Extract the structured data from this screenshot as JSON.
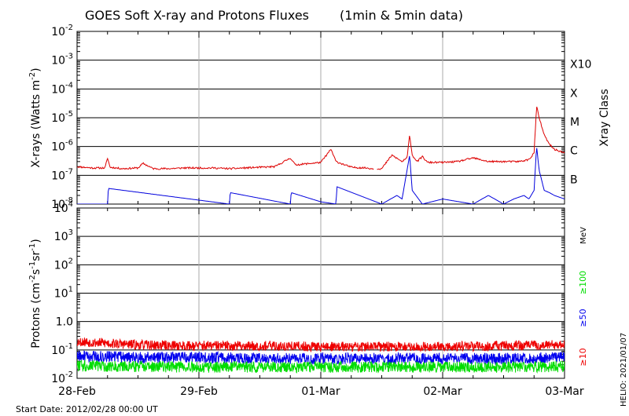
{
  "chart_data": [
    {
      "type": "line",
      "title": "GOES Soft X-ray and Protons Fluxes",
      "subtitle": "(1min & 5min data)",
      "ylabel": "X-rays (Watts m",
      "ylabel_exponent": "-2",
      "ylabel_close": ")",
      "y_scale": "log",
      "ylim": [
        1e-08,
        0.01
      ],
      "y_ticks": [
        {
          "base": "10",
          "exp": "-8"
        },
        {
          "base": "10",
          "exp": "-7"
        },
        {
          "base": "10",
          "exp": "-6"
        },
        {
          "base": "10",
          "exp": "-5"
        },
        {
          "base": "10",
          "exp": "-4"
        },
        {
          "base": "10",
          "exp": "-3"
        },
        {
          "base": "10",
          "exp": "-2"
        }
      ],
      "right_axis_label": "Xray Class",
      "class_labels": [
        "B",
        "C",
        "M",
        "X",
        "X10"
      ],
      "grid": true,
      "series": [
        {
          "color": "#dd0000",
          "x": [
            "02-28 00:00",
            "02-28 03:00",
            "02-28 05:30",
            "02-28 06:00",
            "02-28 06:30",
            "02-28 09:00",
            "02-28 12:00",
            "02-28 13:00",
            "02-28 15:00",
            "02-28 18:00",
            "02-28 21:00",
            "02-29 00:00",
            "02-29 03:00",
            "02-29 06:00",
            "02-29 09:00",
            "02-29 12:00",
            "02-29 15:00",
            "02-29 18:00",
            "02-29 19:00",
            "02-29 21:00",
            "03-01 00:00",
            "03-01 02:00",
            "03-01 03:00",
            "03-01 06:00",
            "03-01 09:00",
            "03-01 10:00",
            "03-01 12:00",
            "03-01 14:00",
            "03-01 16:00",
            "03-01 17:00",
            "03-01 17:30",
            "03-01 18:00",
            "03-01 19:00",
            "03-01 20:00",
            "03-01 21:00",
            "03-02 00:00",
            "03-02 03:00",
            "03-02 06:00",
            "03-02 09:00",
            "03-02 12:00",
            "03-02 15:00",
            "03-02 17:00",
            "03-02 18:00",
            "03-02 18:30",
            "03-02 19:00",
            "03-02 20:00",
            "03-02 21:00",
            "03-02 22:00",
            "03-03 00:00"
          ],
          "y": [
            2e-07,
            1.8e-07,
            1.8e-07,
            4e-07,
            1.9e-07,
            1.7e-07,
            1.8e-07,
            2.6e-07,
            1.7e-07,
            1.7e-07,
            1.8e-07,
            1.8e-07,
            1.8e-07,
            1.7e-07,
            1.8e-07,
            1.9e-07,
            2e-07,
            4e-07,
            2.3e-07,
            2.5e-07,
            2.8e-07,
            8e-07,
            3e-07,
            1.9e-07,
            1.8e-07,
            1.7e-07,
            1.7e-07,
            5e-07,
            3e-07,
            4e-07,
            2.6e-06,
            5e-07,
            3e-07,
            4.5e-07,
            2.8e-07,
            2.8e-07,
            3e-07,
            4e-07,
            3e-07,
            3e-07,
            3e-07,
            3.5e-07,
            6e-07,
            2.5e-05,
            1e-05,
            2.5e-06,
            1.2e-06,
            8e-07,
            6e-07
          ]
        },
        {
          "color": "#0000dd",
          "x": [
            "02-28 00:00",
            "02-28 06:00",
            "02-28 06:10",
            "02-29 06:00",
            "02-29 06:10",
            "02-29 18:00",
            "02-29 18:10",
            "03-01 00:00",
            "03-01 03:00",
            "03-01 03:10",
            "03-01 12:00",
            "03-01 15:00",
            "03-01 16:00",
            "03-01 17:30",
            "03-01 18:00",
            "03-01 20:00",
            "03-02 00:00",
            "03-02 06:00",
            "03-02 09:00",
            "03-02 12:00",
            "03-02 14:00",
            "03-02 16:00",
            "03-02 17:00",
            "03-02 18:00",
            "03-02 18:30",
            "03-02 19:00",
            "03-02 20:00",
            "03-02 21:00",
            "03-02 22:00",
            "03-03 00:00"
          ],
          "y": [
            1e-08,
            1e-08,
            3.5e-08,
            1e-08,
            2.5e-08,
            1e-08,
            2.5e-08,
            1.2e-08,
            1e-08,
            4e-08,
            1e-08,
            2e-08,
            1.5e-08,
            5e-07,
            3e-08,
            1e-08,
            1.5e-08,
            1e-08,
            2e-08,
            1e-08,
            1.5e-08,
            2e-08,
            1.5e-08,
            3e-08,
            1e-06,
            1.5e-07,
            3e-08,
            2.5e-08,
            2e-08,
            1.5e-08
          ]
        }
      ]
    },
    {
      "type": "line",
      "ylabel": "Protons (cm",
      "ylabel_exp1": "-2",
      "ylabel_mid": "s",
      "ylabel_exp2": "-1",
      "ylabel_mid2": "sr",
      "ylabel_exp3": "-1",
      "ylabel_close": ")",
      "y_scale": "log",
      "ylim": [
        0.01,
        10000
      ],
      "y_ticks": [
        {
          "base": "10",
          "exp": "-2"
        },
        {
          "base": "10",
          "exp": "-1"
        },
        {
          "base": "1.0",
          "exp": ""
        },
        {
          "base": "10",
          "exp": "1"
        },
        {
          "base": "10",
          "exp": "2"
        },
        {
          "base": "10",
          "exp": "3"
        },
        {
          "base": "10",
          "exp": "4"
        }
      ],
      "threshold": 10,
      "energy_unit": "MeV",
      "grid": true,
      "series": [
        {
          "name": "≥10",
          "color": "#ee0000",
          "x": [
            "02-28 00:00",
            "02-28 12:00",
            "02-29 00:00",
            "02-29 12:00",
            "03-01 00:00",
            "03-01 12:00",
            "03-02 00:00",
            "03-02 12:00",
            "03-03 00:00"
          ],
          "y": [
            0.2,
            0.15,
            0.14,
            0.14,
            0.13,
            0.13,
            0.13,
            0.14,
            0.15
          ]
        },
        {
          "name": "≥50",
          "color": "#0000ee",
          "x": [
            "02-28 00:00",
            "02-28 12:00",
            "02-29 00:00",
            "02-29 12:00",
            "03-01 00:00",
            "03-01 12:00",
            "03-02 00:00",
            "03-02 12:00",
            "03-03 00:00"
          ],
          "y": [
            0.06,
            0.055,
            0.055,
            0.05,
            0.05,
            0.05,
            0.05,
            0.05,
            0.055
          ]
        },
        {
          "name": "≥100",
          "color": "#00dd00",
          "x": [
            "02-28 00:00",
            "02-28 12:00",
            "02-29 00:00",
            "02-29 12:00",
            "03-01 00:00",
            "03-01 12:00",
            "03-02 00:00",
            "03-02 12:00",
            "03-03 00:00"
          ],
          "y": [
            0.028,
            0.026,
            0.025,
            0.025,
            0.025,
            0.025,
            0.025,
            0.025,
            0.026
          ]
        }
      ]
    }
  ],
  "x_axis": {
    "type": "time",
    "range": [
      "2012-02-28 00:00",
      "2012-03-03 00:00"
    ],
    "tick_labels": [
      "28-Feb",
      "29-Feb",
      "01-Mar",
      "02-Mar",
      "03-Mar"
    ]
  },
  "footer": {
    "start_date": "Start Date: 2012/02/28 00:00 UT",
    "credit": "HELIO: 2021/01/07"
  }
}
